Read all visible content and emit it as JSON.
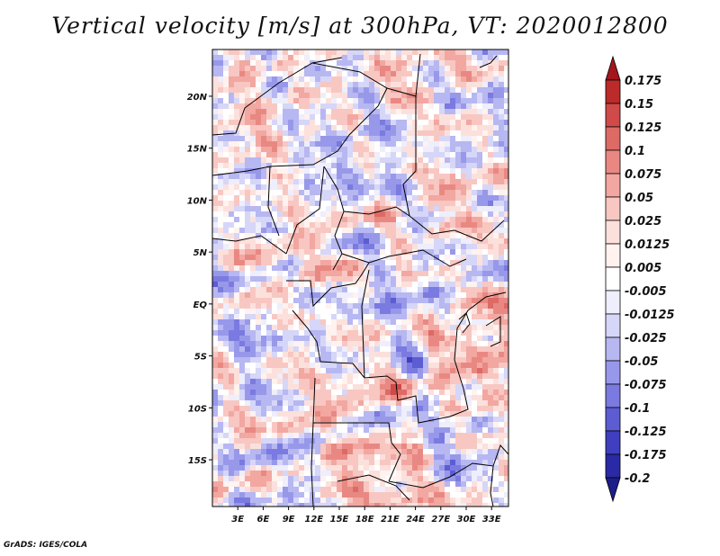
{
  "chart_data": {
    "type": "heatmap",
    "title": "Vertical velocity [m/s] at 300hPa, VT: 2020012800",
    "variable": "Vertical velocity",
    "units": "m/s",
    "level": "300hPa",
    "valid_time": "2020012800",
    "xlabel": "",
    "ylabel": "",
    "xlim": [
      0,
      35
    ],
    "ylim": [
      -19.5,
      24.5
    ],
    "x_ticks": [
      {
        "value": 3,
        "label": "3E"
      },
      {
        "value": 6,
        "label": "6E"
      },
      {
        "value": 9,
        "label": "9E"
      },
      {
        "value": 12,
        "label": "12E"
      },
      {
        "value": 15,
        "label": "15E"
      },
      {
        "value": 18,
        "label": "18E"
      },
      {
        "value": 21,
        "label": "21E"
      },
      {
        "value": 24,
        "label": "24E"
      },
      {
        "value": 27,
        "label": "27E"
      },
      {
        "value": 30,
        "label": "30E"
      },
      {
        "value": 33,
        "label": "33E"
      }
    ],
    "y_ticks": [
      {
        "value": 20,
        "label": "20N"
      },
      {
        "value": 15,
        "label": "15N"
      },
      {
        "value": 10,
        "label": "10N"
      },
      {
        "value": 5,
        "label": "5N"
      },
      {
        "value": 0,
        "label": "EQ"
      },
      {
        "value": -5,
        "label": "5S"
      },
      {
        "value": -10,
        "label": "10S"
      },
      {
        "value": -15,
        "label": "15S"
      }
    ],
    "colorbar": {
      "orientation": "vertical",
      "placement": "right",
      "ticks": [
        "0.175",
        "0.15",
        "0.125",
        "0.1",
        "0.075",
        "0.05",
        "0.025",
        "0.0125",
        "0.005",
        "-0.005",
        "-0.0125",
        "-0.025",
        "-0.05",
        "-0.075",
        "-0.1",
        "-0.125",
        "-0.175",
        "-0.2"
      ],
      "colors": [
        "#a4161d",
        "#bd2a2a",
        "#cf4a48",
        "#dd6a65",
        "#e98882",
        "#f2a7a1",
        "#f8c7c2",
        "#fce0dc",
        "#fff2ef",
        "#ffffff",
        "#eeeefc",
        "#d6d6f8",
        "#b7b7f2",
        "#9898ea",
        "#7a7ae0",
        "#5c5cd3",
        "#3f3fc0",
        "#2a2aa6",
        "#1d1d8a"
      ]
    }
  },
  "footer": "GrADS: IGES/COLA"
}
